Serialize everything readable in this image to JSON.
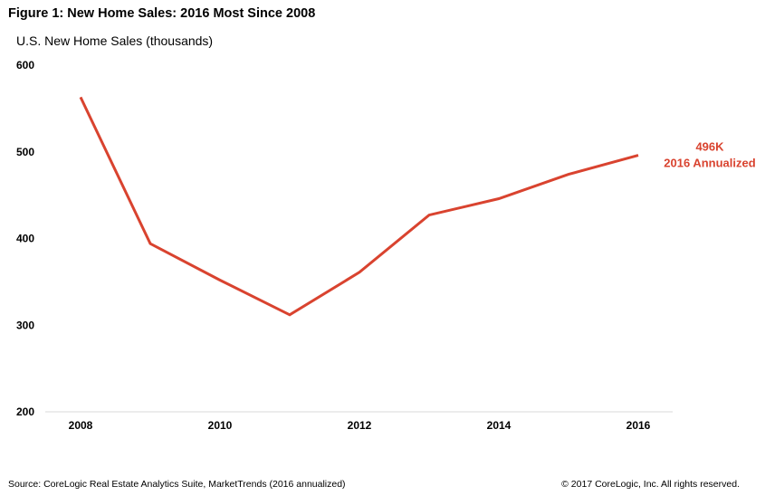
{
  "figure_title": "Figure 1: New Home Sales: 2016 Most Since 2008",
  "source": "Source:  CoreLogic Real Estate Analytics Suite, MarketTrends (2016 annualized)",
  "copyright": "© 2017 CoreLogic, Inc. All rights reserved.",
  "chart_data": {
    "type": "line",
    "title": "Figure 1: New Home Sales: 2016 Most Since 2008",
    "subtitle": "U.S. New Home Sales (thousands)",
    "xlabel": "",
    "ylabel": "U.S. New Home Sales (thousands)",
    "x": [
      2008,
      2009,
      2010,
      2011,
      2012,
      2013,
      2014,
      2015,
      2016
    ],
    "y": [
      563,
      394,
      352,
      312,
      361,
      427,
      446,
      474,
      496
    ],
    "xlim": [
      2008,
      2016
    ],
    "ylim": [
      200,
      600
    ],
    "x_ticks": [
      "2008",
      "2010",
      "2012",
      "2014",
      "2016"
    ],
    "y_ticks": [
      "600",
      "500",
      "400",
      "300",
      "200"
    ],
    "grid": false,
    "line_color": "#d9432f",
    "annotation": {
      "lines": [
        "496K",
        "2016 Annualized"
      ],
      "color": "#d9432f",
      "at_x": 2016,
      "at_y": 496
    }
  }
}
